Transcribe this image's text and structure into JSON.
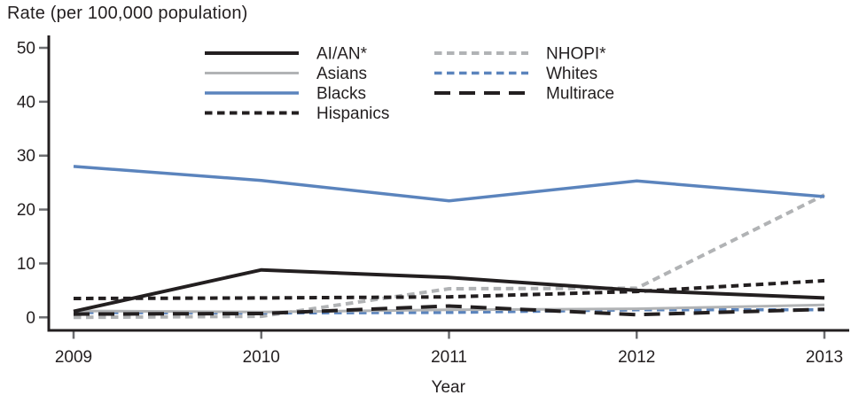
{
  "chart_data": {
    "type": "line",
    "title": "Rate (per 100,000 population)",
    "xlabel": "Year",
    "x": [
      2009,
      2010,
      2011,
      2012,
      2013
    ],
    "ylim": [
      0,
      50
    ],
    "yticks": [
      0,
      10,
      20,
      30,
      40,
      50
    ],
    "grid": false,
    "legend_position": "inside-top, two columns",
    "colors": {
      "black": "#231F20",
      "gray": "#B1B3B5",
      "blue": "#5B84BD",
      "tick": "#6D6E71"
    },
    "series": [
      {
        "name": "AI/AN*",
        "values": [
          1.1,
          8.8,
          7.4,
          5.0,
          3.6
        ],
        "color": "#231F20",
        "dash": "solid",
        "width": 4
      },
      {
        "name": "Asians",
        "values": [
          1.2,
          1.0,
          1.4,
          1.6,
          2.3
        ],
        "color": "#B1B3B5",
        "dash": "solid",
        "width": 3
      },
      {
        "name": "Blacks",
        "values": [
          28.0,
          25.4,
          21.6,
          25.3,
          22.4
        ],
        "color": "#5B84BD",
        "dash": "solid",
        "width": 3.5
      },
      {
        "name": "Hispanics",
        "values": [
          3.5,
          3.6,
          3.8,
          4.8,
          6.8
        ],
        "color": "#231F20",
        "dash": "short",
        "width": 4
      },
      {
        "name": "NHOPI*",
        "values": [
          0.0,
          0.2,
          5.3,
          5.4,
          22.7
        ],
        "color": "#B1B3B5",
        "dash": "short",
        "width": 4
      },
      {
        "name": "Whites",
        "values": [
          0.9,
          0.8,
          0.9,
          1.4,
          1.4
        ],
        "color": "#5B84BD",
        "dash": "short",
        "width": 3.5
      },
      {
        "name": "Multirace",
        "values": [
          0.6,
          0.7,
          2.1,
          0.5,
          1.5
        ],
        "color": "#231F20",
        "dash": "long",
        "width": 4
      }
    ],
    "legend_columns": [
      [
        "AI/AN*",
        "Asians",
        "Blacks",
        "Hispanics"
      ],
      [
        "NHOPI*",
        "Whites",
        "Multirace"
      ]
    ]
  }
}
